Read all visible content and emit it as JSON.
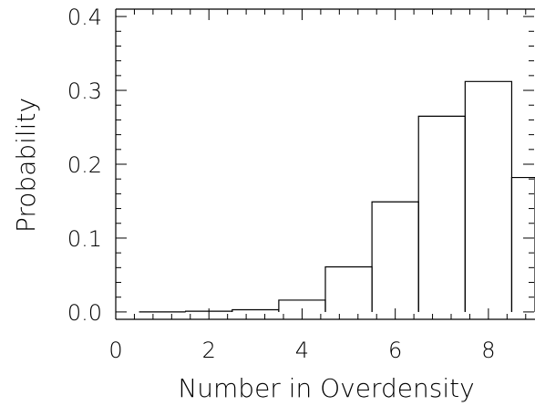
{
  "chart_data": {
    "type": "bar",
    "style": "step-histogram",
    "title": "",
    "xlabel": "Number in Overdensity",
    "ylabel": "Probability",
    "xlim": [
      0,
      9
    ],
    "ylim": [
      -0.01,
      0.41
    ],
    "xticks": [
      0,
      2,
      4,
      6,
      8
    ],
    "xtick_labels": [
      "0",
      "2",
      "4",
      "6",
      "8"
    ],
    "yticks": [
      0.0,
      0.1,
      0.2,
      0.3,
      0.4
    ],
    "ytick_labels": [
      "0.0",
      "0.1",
      "0.2",
      "0.3",
      "0.4"
    ],
    "bins": [
      {
        "x0": 0.5,
        "x1": 1.5,
        "value": 0.0
      },
      {
        "x0": 1.5,
        "x1": 2.5,
        "value": 0.001
      },
      {
        "x0": 2.5,
        "x1": 3.5,
        "value": 0.003
      },
      {
        "x0": 3.5,
        "x1": 4.5,
        "value": 0.016
      },
      {
        "x0": 4.5,
        "x1": 5.5,
        "value": 0.061
      },
      {
        "x0": 5.5,
        "x1": 6.5,
        "value": 0.149
      },
      {
        "x0": 6.5,
        "x1": 7.5,
        "value": 0.265
      },
      {
        "x0": 7.5,
        "x1": 8.5,
        "value": 0.312
      },
      {
        "x0": 8.5,
        "x1": 9.5,
        "value": 0.182
      }
    ],
    "grid": false,
    "legend": "none"
  }
}
